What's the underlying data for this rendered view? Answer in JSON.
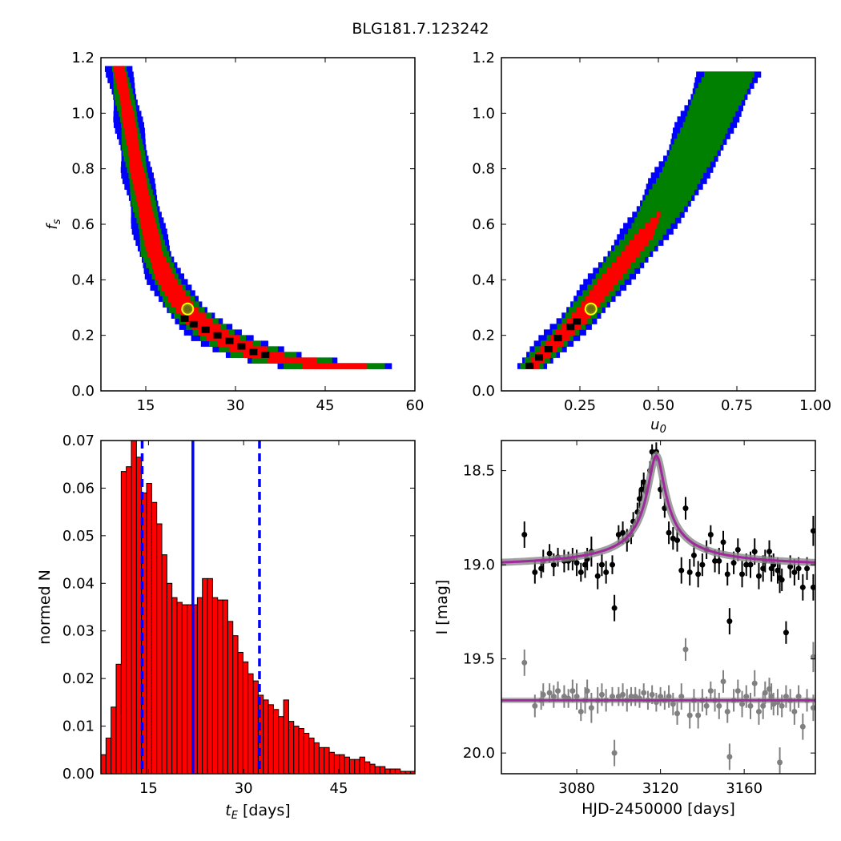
{
  "figure": {
    "title": "BLG181.7.123242"
  },
  "chart_data": [
    {
      "type": "heatmap",
      "panel": "fs_vs_tE",
      "xlabel": "",
      "ylabel": "f_s",
      "xlim": [
        7.5,
        60
      ],
      "ylim": [
        0,
        1.2
      ],
      "xticks": [
        15,
        30,
        45,
        60
      ],
      "yticks": [
        0.0,
        0.2,
        0.4,
        0.6,
        0.8,
        1.0,
        1.2
      ],
      "colors": {
        "3sigma": "#0000ff",
        "2sigma": "#008000",
        "1sigma": "#ff0000",
        "best": "#000000"
      },
      "marker": {
        "x": 22,
        "y": 0.295
      },
      "band": {
        "fs": [
          0.08,
          0.12,
          0.16,
          0.2,
          0.25,
          0.3,
          0.4,
          0.5,
          0.6,
          0.8,
          1.0,
          1.17
        ],
        "tE_c": [
          50,
          36,
          31,
          27,
          24,
          21.5,
          18.5,
          16.5,
          15.5,
          13.5,
          12,
          10.5
        ],
        "w_red": [
          6,
          3.5,
          3.0,
          2.5,
          2.2,
          1.9,
          1.5,
          1.3,
          1.2,
          1.0,
          0.9,
          0.8
        ],
        "w_grn": [
          9,
          5.5,
          4.5,
          3.6,
          3.1,
          2.6,
          2.2,
          2.0,
          1.8,
          1.6,
          1.4,
          1.2
        ],
        "w_blu": [
          10.5,
          6.5,
          5.5,
          4.5,
          3.8,
          3.3,
          2.9,
          2.6,
          2.4,
          2.2,
          2.0,
          1.8
        ]
      },
      "best_points": [
        [
          21.5,
          0.26
        ],
        [
          23,
          0.24
        ],
        [
          25,
          0.22
        ],
        [
          27,
          0.2
        ],
        [
          29,
          0.18
        ],
        [
          31,
          0.16
        ],
        [
          33,
          0.14
        ],
        [
          35,
          0.13
        ]
      ]
    },
    {
      "type": "heatmap",
      "panel": "fs_vs_u0",
      "xlabel": "u_0",
      "ylabel": "",
      "xlim": [
        0,
        1.0
      ],
      "ylim": [
        0,
        1.2
      ],
      "xticks": [
        0.25,
        0.5,
        0.75,
        1.0
      ],
      "yticks": [
        0.0,
        0.2,
        0.4,
        0.6,
        0.8,
        1.0,
        1.2
      ],
      "colors": {
        "3sigma": "#0000ff",
        "2sigma": "#008000",
        "1sigma": "#ff0000",
        "best": "#000000"
      },
      "marker": {
        "x": 0.285,
        "y": 0.295
      },
      "band": {
        "fs": [
          0.08,
          0.15,
          0.25,
          0.35,
          0.45,
          0.55,
          0.65,
          0.75,
          0.85,
          0.95,
          1.05,
          1.15
        ],
        "u0_c": [
          0.09,
          0.15,
          0.24,
          0.31,
          0.38,
          0.45,
          0.51,
          0.56,
          0.61,
          0.65,
          0.69,
          0.73
        ],
        "w_red": [
          0.02,
          0.025,
          0.03,
          0.03,
          0.03,
          0.03,
          0.0,
          0.0,
          0.0,
          0.0,
          0.0,
          0.0
        ],
        "w_grn": [
          0.03,
          0.04,
          0.045,
          0.05,
          0.055,
          0.06,
          0.065,
          0.07,
          0.07,
          0.075,
          0.075,
          0.08
        ],
        "w_blu": [
          0.045,
          0.055,
          0.06,
          0.065,
          0.07,
          0.075,
          0.08,
          0.085,
          0.085,
          0.09,
          0.09,
          0.095
        ]
      },
      "best_points": [
        [
          0.09,
          0.09
        ],
        [
          0.12,
          0.12
        ],
        [
          0.15,
          0.15
        ],
        [
          0.18,
          0.19
        ],
        [
          0.22,
          0.23
        ],
        [
          0.24,
          0.25
        ]
      ]
    },
    {
      "type": "bar",
      "panel": "tE_histogram",
      "xlabel": "t_E [days]",
      "ylabel": "normed N",
      "xlim": [
        7.5,
        57
      ],
      "ylim": [
        0,
        0.07
      ],
      "xticks": [
        15,
        30,
        45
      ],
      "yticks": [
        0.0,
        0.01,
        0.02,
        0.03,
        0.04,
        0.05,
        0.06,
        0.07
      ],
      "bar_color": "#ff0000",
      "bin_start": 7.5,
      "bin_width": 0.8,
      "values": [
        0.004,
        0.0075,
        0.014,
        0.023,
        0.0635,
        0.0645,
        0.0705,
        0.0665,
        0.059,
        0.061,
        0.057,
        0.0525,
        0.046,
        0.04,
        0.037,
        0.036,
        0.0355,
        0.0355,
        0.0355,
        0.037,
        0.041,
        0.041,
        0.037,
        0.0365,
        0.0365,
        0.032,
        0.029,
        0.0255,
        0.0235,
        0.021,
        0.0195,
        0.0165,
        0.0155,
        0.0145,
        0.0135,
        0.012,
        0.0155,
        0.011,
        0.01,
        0.0095,
        0.0085,
        0.0075,
        0.0065,
        0.0055,
        0.0055,
        0.0045,
        0.004,
        0.004,
        0.0035,
        0.003,
        0.003,
        0.0035,
        0.0025,
        0.002,
        0.0015,
        0.0015,
        0.001,
        0.001,
        0.001,
        0.0005,
        0.0005,
        0.0005
      ],
      "vlines": {
        "median": 22,
        "lower": 14,
        "upper": 32.5
      },
      "line_color": "#0000ff"
    },
    {
      "type": "scatter",
      "panel": "lightcurve",
      "xlabel": "HJD-2450000 [days]",
      "ylabel": "I [mag]",
      "xlim": [
        3044,
        3194
      ],
      "ylim": [
        20.11,
        18.34
      ],
      "xticks": [
        3080,
        3120,
        3160
      ],
      "yticks": [
        18.5,
        19.0,
        19.5,
        20.0
      ],
      "model": {
        "color": "#a0279c",
        "base": 19.02,
        "peak": 18.42,
        "t0": 3118,
        "width": 6
      },
      "residual_model": {
        "color": "#a0279c",
        "level": 19.72
      },
      "series": [
        {
          "name": "",
          "color": "#000000",
          "points": [
            [
              3055,
              18.84,
              0.07
            ],
            [
              3060,
              19.04,
              0.06
            ],
            [
              3063,
              19.02,
              0.05
            ],
            [
              3064,
              18.98,
              0.06
            ],
            [
              3067,
              18.94,
              0.05
            ],
            [
              3069,
              19.0,
              0.06
            ],
            [
              3071,
              18.96,
              0.05
            ],
            [
              3074,
              18.98,
              0.06
            ],
            [
              3076,
              18.98,
              0.05
            ],
            [
              3078,
              18.97,
              0.06
            ],
            [
              3080,
              18.99,
              0.07
            ],
            [
              3082,
              19.04,
              0.05
            ],
            [
              3084,
              19.0,
              0.07
            ],
            [
              3085,
              18.97,
              0.06
            ],
            [
              3087,
              18.93,
              0.08
            ],
            [
              3090,
              19.06,
              0.07
            ],
            [
              3092,
              19.0,
              0.06
            ],
            [
              3094,
              19.04,
              0.06
            ],
            [
              3097,
              19.0,
              0.05
            ],
            [
              3098,
              19.23,
              0.07
            ],
            [
              3100,
              18.84,
              0.05
            ],
            [
              3102,
              18.83,
              0.06
            ],
            [
              3104,
              18.87,
              0.06
            ],
            [
              3106,
              18.84,
              0.05
            ],
            [
              3107,
              18.77,
              0.05
            ],
            [
              3109,
              18.72,
              0.05
            ],
            [
              3110,
              18.65,
              0.05
            ],
            [
              3111,
              18.6,
              0.05
            ],
            [
              3112,
              18.56,
              0.05
            ],
            [
              3113,
              18.61,
              0.04
            ],
            [
              3115,
              18.5,
              0.05
            ],
            [
              3116,
              18.4,
              0.04
            ],
            [
              3118,
              18.4,
              0.05
            ],
            [
              3120,
              18.6,
              0.05
            ],
            [
              3122,
              18.7,
              0.05
            ],
            [
              3124,
              18.83,
              0.06
            ],
            [
              3126,
              18.86,
              0.06
            ],
            [
              3128,
              18.87,
              0.06
            ],
            [
              3130,
              19.03,
              0.07
            ],
            [
              3132,
              18.7,
              0.06
            ],
            [
              3134,
              19.04,
              0.07
            ],
            [
              3136,
              18.95,
              0.06
            ],
            [
              3138,
              19.05,
              0.07
            ],
            [
              3140,
              19.0,
              0.06
            ],
            [
              3142,
              18.92,
              0.05
            ],
            [
              3144,
              18.84,
              0.05
            ],
            [
              3146,
              18.98,
              0.06
            ],
            [
              3148,
              18.98,
              0.07
            ],
            [
              3150,
              18.88,
              0.06
            ],
            [
              3152,
              19.05,
              0.06
            ],
            [
              3153,
              19.3,
              0.07
            ],
            [
              3155,
              18.99,
              0.06
            ],
            [
              3157,
              18.92,
              0.06
            ],
            [
              3159,
              19.05,
              0.07
            ],
            [
              3161,
              19.0,
              0.06
            ],
            [
              3163,
              19.0,
              0.07
            ],
            [
              3165,
              18.93,
              0.07
            ],
            [
              3167,
              19.06,
              0.07
            ],
            [
              3169,
              19.02,
              0.07
            ],
            [
              3170,
              18.98,
              0.06
            ],
            [
              3172,
              18.93,
              0.06
            ],
            [
              3173,
              19.02,
              0.07
            ],
            [
              3174,
              19.0,
              0.06
            ],
            [
              3176,
              19.03,
              0.07
            ],
            [
              3177,
              19.07,
              0.08
            ],
            [
              3178,
              19.08,
              0.06
            ],
            [
              3180,
              19.36,
              0.06
            ],
            [
              3182,
              19.01,
              0.06
            ],
            [
              3184,
              19.04,
              0.07
            ],
            [
              3186,
              19.02,
              0.06
            ],
            [
              3188,
              19.12,
              0.07
            ],
            [
              3190,
              19.02,
              0.06
            ],
            [
              3193,
              18.82,
              0.08
            ],
            [
              3193,
              19.12,
              0.07
            ]
          ]
        },
        {
          "name": "",
          "color": "#808080",
          "points": [
            [
              3055,
              19.52,
              0.07
            ],
            [
              3060,
              19.75,
              0.06
            ],
            [
              3063,
              19.72,
              0.05
            ],
            [
              3064,
              19.69,
              0.06
            ],
            [
              3067,
              19.68,
              0.05
            ],
            [
              3069,
              19.7,
              0.06
            ],
            [
              3071,
              19.67,
              0.05
            ],
            [
              3074,
              19.7,
              0.06
            ],
            [
              3076,
              19.71,
              0.05
            ],
            [
              3078,
              19.67,
              0.06
            ],
            [
              3080,
              19.7,
              0.07
            ],
            [
              3082,
              19.78,
              0.05
            ],
            [
              3084,
              19.72,
              0.07
            ],
            [
              3085,
              19.67,
              0.06
            ],
            [
              3087,
              19.76,
              0.08
            ],
            [
              3090,
              19.72,
              0.07
            ],
            [
              3092,
              19.69,
              0.06
            ],
            [
              3094,
              19.72,
              0.06
            ],
            [
              3097,
              19.7,
              0.05
            ],
            [
              3098,
              20.0,
              0.07
            ],
            [
              3100,
              19.7,
              0.05
            ],
            [
              3102,
              19.69,
              0.06
            ],
            [
              3104,
              19.72,
              0.06
            ],
            [
              3106,
              19.7,
              0.05
            ],
            [
              3108,
              19.7,
              0.05
            ],
            [
              3110,
              19.71,
              0.05
            ],
            [
              3112,
              19.68,
              0.05
            ],
            [
              3114,
              19.72,
              0.05
            ],
            [
              3116,
              19.69,
              0.05
            ],
            [
              3118,
              19.73,
              0.05
            ],
            [
              3120,
              19.7,
              0.05
            ],
            [
              3122,
              19.72,
              0.05
            ],
            [
              3124,
              19.7,
              0.06
            ],
            [
              3126,
              19.74,
              0.06
            ],
            [
              3128,
              19.79,
              0.06
            ],
            [
              3130,
              19.7,
              0.07
            ],
            [
              3132,
              19.45,
              0.06
            ],
            [
              3134,
              19.8,
              0.07
            ],
            [
              3136,
              19.72,
              0.06
            ],
            [
              3138,
              19.8,
              0.07
            ],
            [
              3140,
              19.72,
              0.06
            ],
            [
              3142,
              19.75,
              0.05
            ],
            [
              3144,
              19.67,
              0.05
            ],
            [
              3146,
              19.72,
              0.06
            ],
            [
              3148,
              19.75,
              0.07
            ],
            [
              3150,
              19.62,
              0.06
            ],
            [
              3152,
              19.78,
              0.06
            ],
            [
              3153,
              20.02,
              0.07
            ],
            [
              3155,
              19.72,
              0.06
            ],
            [
              3157,
              19.67,
              0.06
            ],
            [
              3159,
              19.74,
              0.07
            ],
            [
              3161,
              19.7,
              0.06
            ],
            [
              3163,
              19.75,
              0.07
            ],
            [
              3165,
              19.63,
              0.07
            ],
            [
              3167,
              19.78,
              0.07
            ],
            [
              3169,
              19.75,
              0.07
            ],
            [
              3170,
              19.68,
              0.06
            ],
            [
              3172,
              19.66,
              0.06
            ],
            [
              3173,
              19.7,
              0.07
            ],
            [
              3174,
              19.74,
              0.06
            ],
            [
              3176,
              19.73,
              0.07
            ],
            [
              3177,
              20.05,
              0.08
            ],
            [
              3178,
              19.75,
              0.06
            ],
            [
              3180,
              19.7,
              0.06
            ],
            [
              3182,
              19.72,
              0.06
            ],
            [
              3184,
              19.78,
              0.07
            ],
            [
              3186,
              19.7,
              0.06
            ],
            [
              3188,
              19.86,
              0.07
            ],
            [
              3190,
              19.72,
              0.06
            ],
            [
              3193,
              19.49,
              0.08
            ],
            [
              3193,
              19.76,
              0.07
            ]
          ]
        }
      ]
    }
  ]
}
